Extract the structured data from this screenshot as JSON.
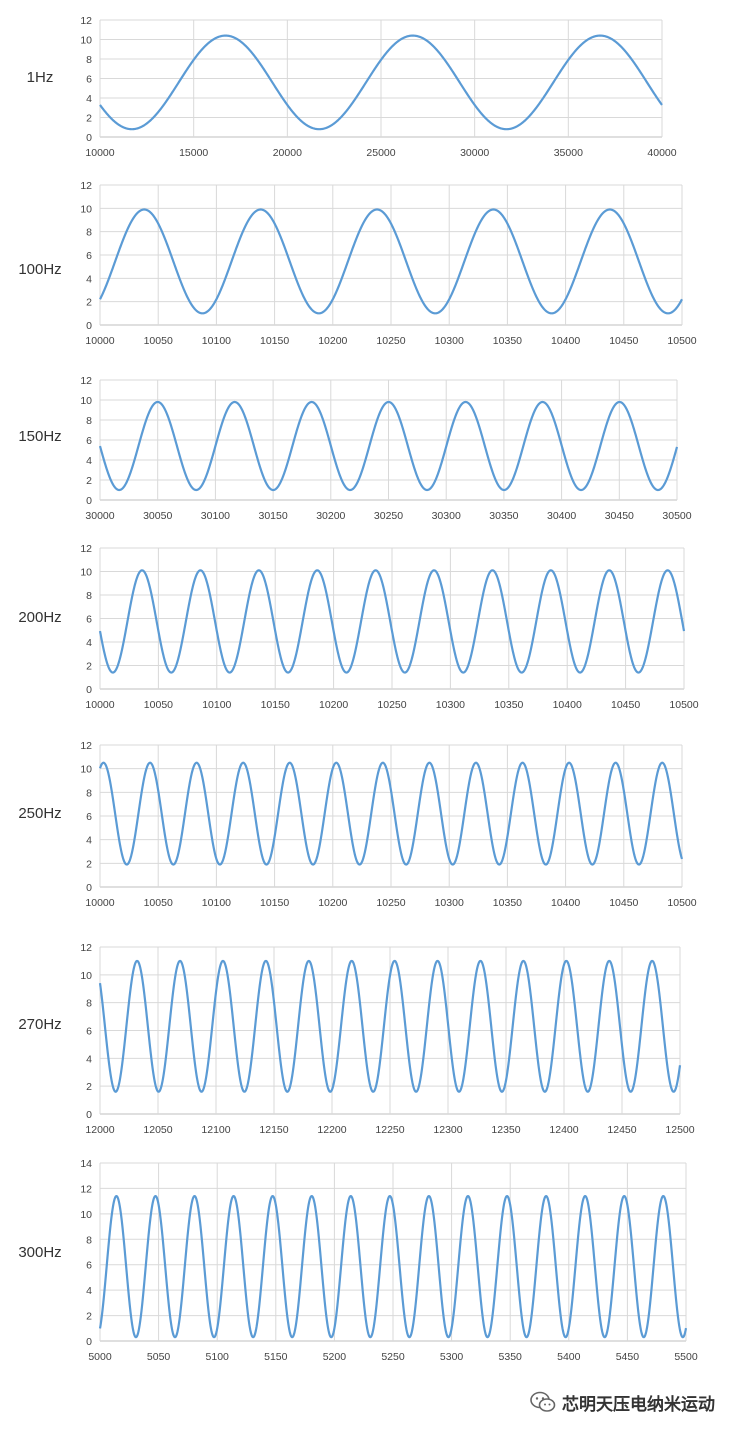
{
  "colors": {
    "series": "#5b9bd5",
    "grid": "#d9d9d9",
    "text": "#333333"
  },
  "watermark": {
    "icon": "wechat-icon",
    "text": "芯明天压电纳米运动"
  },
  "chart_data": [
    {
      "type": "line",
      "label": "1Hz",
      "xlim": [
        10000,
        40000
      ],
      "ylim": [
        0,
        12
      ],
      "xticks": [
        10000,
        15000,
        20000,
        25000,
        30000,
        35000,
        40000
      ],
      "yticks": [
        0,
        2,
        4,
        6,
        8,
        10,
        12
      ],
      "wave": {
        "min": 0.8,
        "max": 10.4,
        "period": 10000,
        "first_peak": 16700
      }
    },
    {
      "type": "line",
      "label": "100Hz",
      "xlim": [
        10000,
        10500
      ],
      "ylim": [
        0,
        12
      ],
      "xticks": [
        10000,
        10050,
        10100,
        10150,
        10200,
        10250,
        10300,
        10350,
        10400,
        10450,
        10500
      ],
      "yticks": [
        0,
        2,
        4,
        6,
        8,
        10,
        12
      ],
      "wave": {
        "min": 1.0,
        "max": 9.9,
        "period": 100,
        "first_peak": 10038
      }
    },
    {
      "type": "line",
      "label": "150Hz",
      "xlim": [
        30000,
        30500
      ],
      "ylim": [
        0,
        12
      ],
      "xticks": [
        30000,
        30050,
        30100,
        30150,
        30200,
        30250,
        30300,
        30350,
        30400,
        30450,
        30500
      ],
      "yticks": [
        0,
        2,
        4,
        6,
        8,
        10,
        12
      ],
      "wave": {
        "min": 1.0,
        "max": 9.8,
        "period": 66.7,
        "first_peak": 30050
      }
    },
    {
      "type": "line",
      "label": "200Hz",
      "xlim": [
        10000,
        10500
      ],
      "ylim": [
        0,
        12
      ],
      "xticks": [
        10000,
        10050,
        10100,
        10150,
        10200,
        10250,
        10300,
        10350,
        10400,
        10450,
        10500
      ],
      "yticks": [
        0,
        2,
        4,
        6,
        8,
        10,
        12
      ],
      "wave": {
        "min": 1.4,
        "max": 10.1,
        "period": 50,
        "first_peak": 10036
      }
    },
    {
      "type": "line",
      "label": "250Hz",
      "xlim": [
        10000,
        10500
      ],
      "ylim": [
        0,
        12
      ],
      "xticks": [
        10000,
        10050,
        10100,
        10150,
        10200,
        10250,
        10300,
        10350,
        10400,
        10450,
        10500
      ],
      "yticks": [
        0,
        2,
        4,
        6,
        8,
        10,
        12
      ],
      "wave": {
        "min": 1.9,
        "max": 10.5,
        "period": 40,
        "first_peak": 10003
      }
    },
    {
      "type": "line",
      "label": "270Hz",
      "xlim": [
        12000,
        12500
      ],
      "ylim": [
        0,
        12
      ],
      "xticks": [
        12000,
        12050,
        12100,
        12150,
        12200,
        12250,
        12300,
        12350,
        12400,
        12450,
        12500
      ],
      "yticks": [
        0,
        2,
        4,
        6,
        8,
        10,
        12
      ],
      "wave": {
        "min": 1.6,
        "max": 11.0,
        "period": 37,
        "first_peak": 12032
      }
    },
    {
      "type": "line",
      "label": "300Hz",
      "xlim": [
        5000,
        5500
      ],
      "ylim": [
        0,
        14
      ],
      "xticks": [
        5000,
        5050,
        5100,
        5150,
        5200,
        5250,
        5300,
        5350,
        5400,
        5450,
        5500
      ],
      "yticks": [
        0,
        2,
        4,
        6,
        8,
        10,
        12,
        14
      ],
      "wave": {
        "min": 0.3,
        "max": 11.4,
        "period": 33.33,
        "first_peak": 5014
      }
    }
  ]
}
